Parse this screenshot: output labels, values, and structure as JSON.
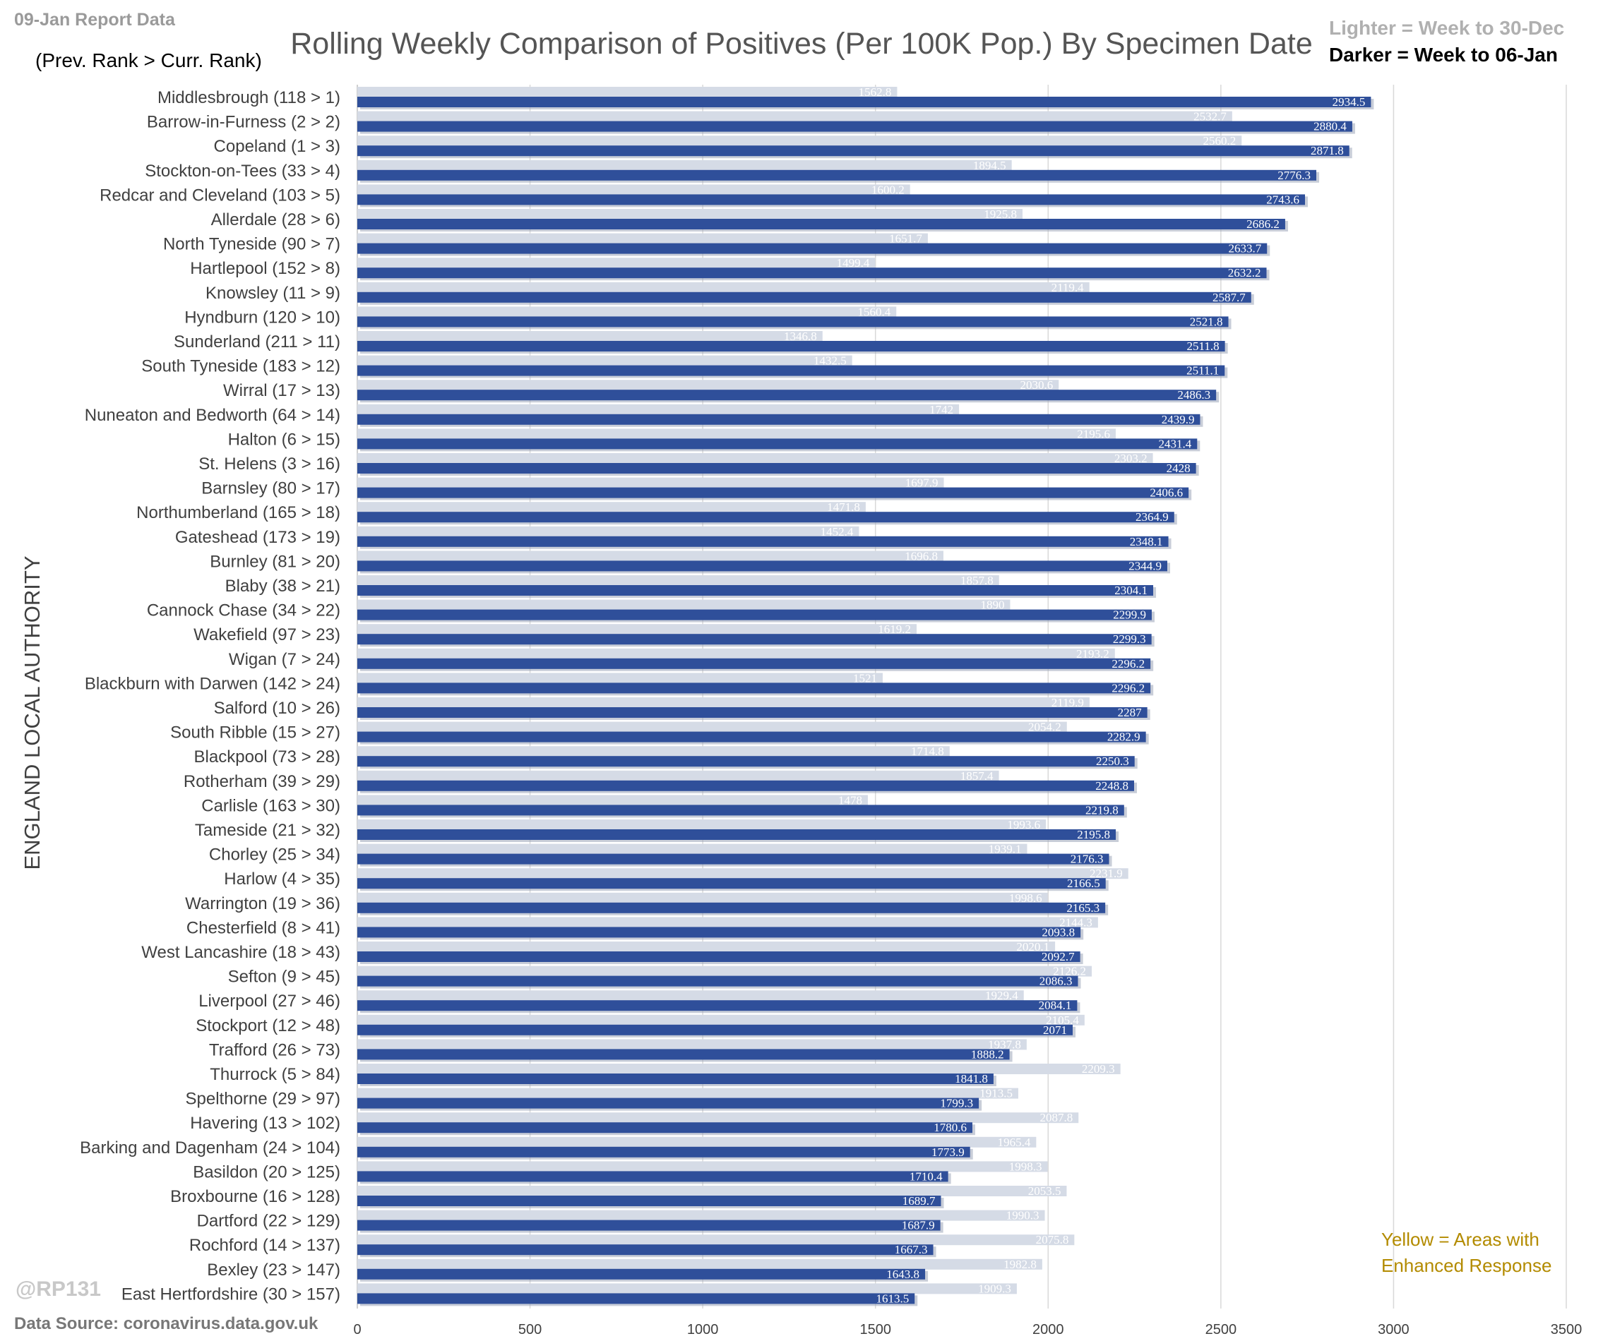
{
  "header": {
    "report_date": "09-Jan Report Data",
    "rank_note": "(Prev. Rank > Curr. Rank)",
    "lighter_label": "Lighter =  Week to 30-Dec",
    "darker_label": "Darker =  Week to 06-Jan"
  },
  "footer": {
    "credit": "@RP131",
    "source": "Data Source: coronavirus.data.gov.uk",
    "legend_note_line1": "Yellow = Areas with",
    "legend_note_line2": "Enhanced Response"
  },
  "colors": {
    "lighter_bar": "#d5dbe6",
    "darker_bar": "#2f4f9a",
    "gridline": "#d9d9d9",
    "legend_note": "#b38b00"
  },
  "chart_data": {
    "type": "bar",
    "orientation": "horizontal",
    "title": "Rolling Weekly Comparison of Positives  (Per 100K Pop.) By Specimen Date",
    "ylabel": "ENGLAND LOCAL AUTHORITY",
    "xlabel": "",
    "xlim": [
      0,
      3500
    ],
    "xticks": [
      0,
      500,
      1000,
      1500,
      2000,
      2500,
      3000,
      3500
    ],
    "grid": true,
    "categories": [
      "Middlesbrough (118 > 1)",
      "Barrow-in-Furness (2 > 2)",
      "Copeland (1 > 3)",
      "Stockton-on-Tees (33 > 4)",
      "Redcar and Cleveland (103 > 5)",
      "Allerdale (28 > 6)",
      "North Tyneside (90 > 7)",
      "Hartlepool (152 > 8)",
      "Knowsley (11 > 9)",
      "Hyndburn (120 > 10)",
      "Sunderland (211 > 11)",
      "South Tyneside (183 > 12)",
      "Wirral (17 > 13)",
      "Nuneaton and Bedworth (64 > 14)",
      "Halton (6 > 15)",
      "St. Helens (3 > 16)",
      "Barnsley (80 > 17)",
      "Northumberland (165 > 18)",
      "Gateshead (173 > 19)",
      "Burnley (81 > 20)",
      "Blaby (38 > 21)",
      "Cannock Chase (34 > 22)",
      "Wakefield (97 > 23)",
      "Wigan (7 > 24)",
      "Blackburn with Darwen (142 > 24)",
      "Salford (10 > 26)",
      "South Ribble (15 > 27)",
      "Blackpool (73 > 28)",
      "Rotherham (39 > 29)",
      "Carlisle (163 > 30)",
      "Tameside (21 > 32)",
      "Chorley (25 > 34)",
      "Harlow (4 > 35)",
      "Warrington (19 > 36)",
      "Chesterfield (8 > 41)",
      "West Lancashire (18 > 43)",
      "Sefton (9 > 45)",
      "Liverpool (27 > 46)",
      "Stockport (12 > 48)",
      "Trafford (26 > 73)",
      "Thurrock (5 > 84)",
      "Spelthorne (29 > 97)",
      "Havering (13 > 102)",
      "Barking and Dagenham (24 > 104)",
      "Basildon (20 > 125)",
      "Broxbourne (16 > 128)",
      "Dartford (22 > 129)",
      "Rochford (14 > 137)",
      "Bexley (23 > 147)",
      "East Hertfordshire (30 > 157)"
    ],
    "series": [
      {
        "name": "Week to 30-Dec",
        "values": [
          1562.8,
          2532.7,
          2560.2,
          1894.5,
          1600.2,
          1925.8,
          1651.7,
          1499.4,
          2119.4,
          1560.4,
          1346.8,
          1432.5,
          2030.6,
          1742,
          2195.6,
          2303.2,
          1697.9,
          1471.8,
          1452.4,
          1696.8,
          1857.8,
          1890,
          1619.2,
          2193.2,
          1521,
          2119.9,
          2054.2,
          1714.8,
          1857.4,
          1478,
          1993.6,
          1939.1,
          2231.9,
          1998.6,
          2144.3,
          2020.1,
          2126.2,
          1929.4,
          2105.4,
          1937.8,
          2209.3,
          1913.5,
          2087.8,
          1965.4,
          1998.3,
          2053.5,
          1990.3,
          2075.8,
          1982.8,
          1909.3
        ]
      },
      {
        "name": "Week to 06-Jan",
        "values": [
          2934.5,
          2880.4,
          2871.8,
          2776.3,
          2743.6,
          2686.2,
          2633.7,
          2632.2,
          2587.7,
          2521.8,
          2511.8,
          2511.1,
          2486.3,
          2439.9,
          2431.4,
          2428,
          2406.6,
          2364.9,
          2348.1,
          2344.9,
          2304.1,
          2299.9,
          2299.3,
          2296.2,
          2296.2,
          2287,
          2282.9,
          2250.3,
          2248.8,
          2219.8,
          2195.8,
          2176.3,
          2166.5,
          2165.3,
          2093.8,
          2092.7,
          2086.3,
          2084.1,
          2071,
          1888.2,
          1841.8,
          1799.3,
          1780.6,
          1773.9,
          1710.4,
          1689.7,
          1687.9,
          1667.3,
          1643.8,
          1613.5
        ]
      }
    ]
  }
}
